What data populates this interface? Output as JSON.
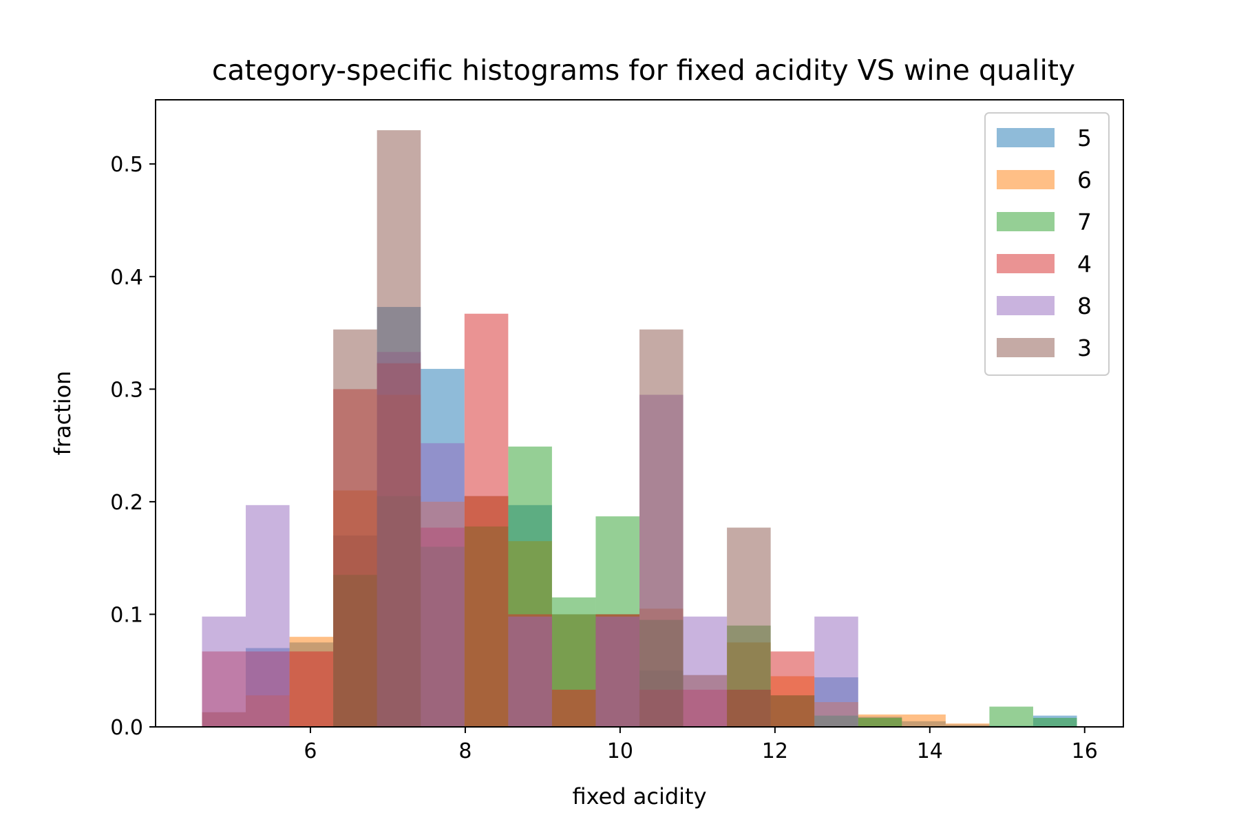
{
  "chart_data": {
    "type": "bar",
    "subtype": "overlaid-histogram",
    "title": "category-specific histograms for fixed acidity VS wine quality",
    "xlabel": "fixed acidity",
    "ylabel": "fraction",
    "xlim": [
      4.0,
      16.5
    ],
    "ylim": [
      0,
      0.557
    ],
    "xticks": [
      6,
      8,
      10,
      12,
      14,
      16
    ],
    "yticks": [
      0.0,
      0.1,
      0.2,
      0.3,
      0.4,
      0.5
    ],
    "grid": false,
    "legend_position": "top-right",
    "bin_edges": [
      4.6,
      5.165,
      5.73,
      6.295,
      6.86,
      7.425,
      7.99,
      8.555,
      9.12,
      9.685,
      10.25,
      10.815,
      11.38,
      11.945,
      12.51,
      13.075,
      13.64,
      14.205,
      14.77,
      15.335,
      15.9
    ],
    "series": [
      {
        "name": "5",
        "color": "#1f77b4",
        "values": [
          0.013,
          0.07,
          0.075,
          0.17,
          0.373,
          0.318,
          0.205,
          0.197,
          0.1,
          0.1,
          0.05,
          0.046,
          0.033,
          0.028,
          0.044,
          0.009,
          0.005,
          0.002,
          0.001,
          0.01
        ]
      },
      {
        "name": "6",
        "color": "#ff7f0e",
        "values": [
          0.013,
          0.028,
          0.08,
          0.21,
          0.295,
          0.2,
          0.205,
          0.165,
          0.1,
          0.1,
          0.105,
          0.046,
          0.075,
          0.045,
          0.022,
          0.011,
          0.011,
          0.003,
          0.0,
          0.0
        ]
      },
      {
        "name": "7",
        "color": "#2ca02c",
        "values": [
          0.0,
          0.0,
          0.0,
          0.135,
          0.205,
          0.16,
          0.178,
          0.249,
          0.115,
          0.187,
          0.095,
          0.0,
          0.09,
          0.028,
          0.01,
          0.008,
          0.0,
          0.0,
          0.018,
          0.008
        ]
      },
      {
        "name": "4",
        "color": "#d62728",
        "values": [
          0.067,
          0.067,
          0.067,
          0.3,
          0.323,
          0.177,
          0.367,
          0.1,
          0.033,
          0.1,
          0.033,
          0.033,
          0.033,
          0.067,
          0.0,
          0.0,
          0.0,
          0.0,
          0.0,
          0.0
        ]
      },
      {
        "name": "8",
        "color": "#9467bd",
        "values": [
          0.098,
          0.197,
          0.0,
          0.0,
          0.333,
          0.252,
          0.0,
          0.098,
          0.0,
          0.098,
          0.295,
          0.098,
          0.0,
          0.0,
          0.098,
          0.0,
          0.0,
          0.0,
          0.0,
          0.0
        ]
      },
      {
        "name": "3",
        "color": "#8c564b",
        "values": [
          0.0,
          0.0,
          0.0,
          0.353,
          0.53,
          0.0,
          0.0,
          0.0,
          0.0,
          0.0,
          0.353,
          0.0,
          0.177,
          0.0,
          0.0,
          0.0,
          0.0,
          0.0,
          0.0,
          0.0
        ]
      }
    ]
  }
}
